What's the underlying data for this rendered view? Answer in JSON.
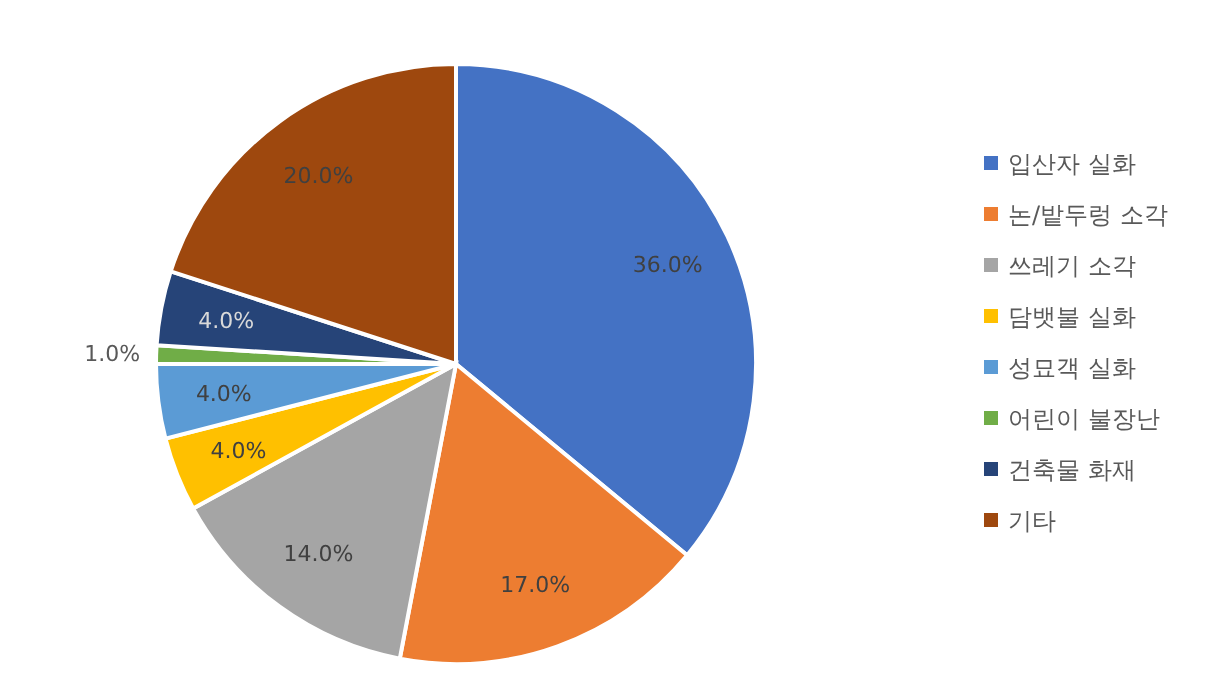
{
  "chart_data": {
    "type": "pie",
    "categories": [
      "입산자 실화",
      "논/밭두렁 소각",
      "쓰레기 소각",
      "담뱃불 실화",
      "성묘객 실화",
      "어린이 불장난",
      "건축물 화재",
      "기타"
    ],
    "values": [
      36.0,
      17.0,
      14.0,
      4.0,
      4.0,
      1.0,
      4.0,
      20.0
    ],
    "value_labels": [
      "36.0%",
      "17.0%",
      "14.0%",
      "4.0%",
      "4.0%",
      "1.0%",
      "4.0%",
      "20.0%"
    ],
    "colors": [
      "#4472c4",
      "#ed7d31",
      "#a5a5a5",
      "#ffc000",
      "#5b9bd5",
      "#70ad47",
      "#264478",
      "#9e480e"
    ],
    "legend": "right"
  }
}
